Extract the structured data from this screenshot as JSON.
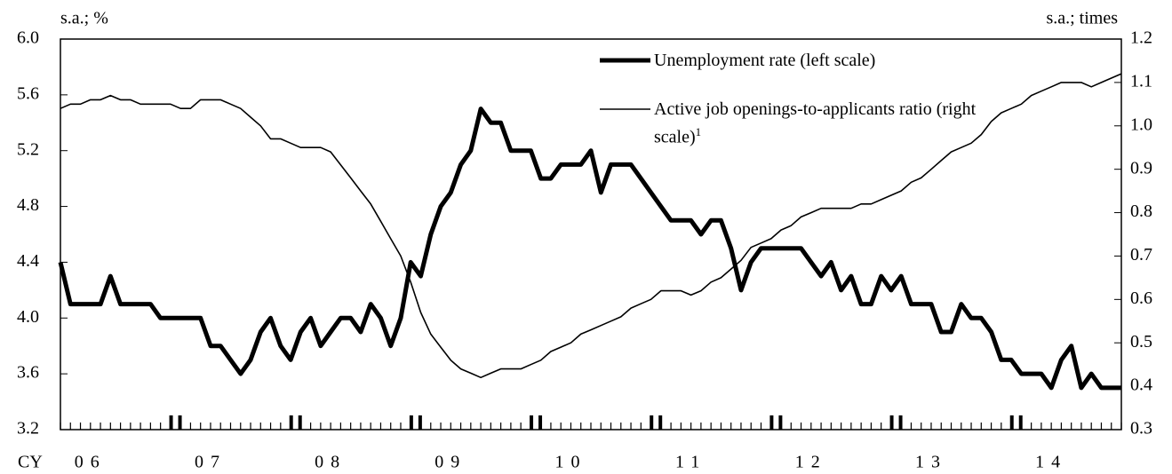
{
  "chart_data": {
    "type": "line",
    "ylabel": "s.a.; %",
    "y2label": "s.a.; times",
    "xlabel": "CY",
    "categories": [
      null,
      null,
      null,
      "06",
      null,
      null,
      null,
      null,
      null,
      null,
      null,
      null,
      null,
      null,
      null,
      "07",
      null,
      null,
      null,
      null,
      null,
      null,
      null,
      null,
      null,
      null,
      null,
      "08",
      null,
      null,
      null,
      null,
      null,
      null,
      null,
      null,
      null,
      null,
      null,
      "09",
      null,
      null,
      null,
      null,
      null,
      null,
      null,
      null,
      null,
      null,
      null,
      "10",
      null,
      null,
      null,
      null,
      null,
      null,
      null,
      null,
      null,
      null,
      null,
      "11",
      null,
      null,
      null,
      null,
      null,
      null,
      null,
      null,
      null,
      null,
      null,
      "12",
      null,
      null,
      null,
      null,
      null,
      null,
      null,
      null,
      null,
      null,
      null,
      "13",
      null,
      null,
      null,
      null,
      null,
      null,
      null,
      null,
      null,
      null,
      null,
      "14",
      null,
      null,
      null,
      null,
      null,
      null,
      null
    ],
    "series": [
      {
        "name": "Unemployment rate (left scale)",
        "color": "#000000",
        "axis": "y",
        "width": 5,
        "values": [
          4.4,
          4.1,
          4.1,
          4.1,
          4.1,
          4.3,
          4.1,
          4.1,
          4.1,
          4.1,
          4.0,
          4.0,
          4.0,
          4.0,
          4.0,
          3.8,
          3.8,
          3.7,
          3.6,
          3.7,
          3.9,
          4.0,
          3.8,
          3.7,
          3.9,
          4.0,
          3.8,
          3.9,
          4.0,
          4.0,
          3.9,
          4.1,
          4.0,
          3.8,
          4.0,
          4.4,
          4.3,
          4.6,
          4.8,
          4.9,
          5.1,
          5.2,
          5.5,
          5.4,
          5.4,
          5.2,
          5.2,
          5.2,
          5.0,
          5.0,
          5.1,
          5.1,
          5.1,
          5.2,
          4.9,
          5.1,
          5.1,
          5.1,
          5.0,
          4.9,
          4.8,
          4.7,
          4.7,
          4.7,
          4.6,
          4.7,
          4.7,
          4.5,
          4.2,
          4.4,
          4.5,
          4.5,
          4.5,
          4.5,
          4.5,
          4.4,
          4.3,
          4.4,
          4.2,
          4.3,
          4.1,
          4.1,
          4.3,
          4.2,
          4.3,
          4.1,
          4.1,
          4.1,
          3.9,
          3.9,
          4.1,
          4.0,
          4.0,
          3.9,
          3.7,
          3.7,
          3.6,
          3.6,
          3.6,
          3.5,
          3.7,
          3.8,
          3.5,
          3.6,
          3.5,
          3.5,
          3.5
        ]
      },
      {
        "name": "Active job openings-to-applicants ratio (right scale)",
        "footnote_mark": "1",
        "color": "#000000",
        "axis": "y2",
        "width": 1.6,
        "values": [
          1.04,
          1.05,
          1.05,
          1.06,
          1.06,
          1.07,
          1.06,
          1.06,
          1.05,
          1.05,
          1.05,
          1.05,
          1.04,
          1.04,
          1.06,
          1.06,
          1.06,
          1.05,
          1.04,
          1.02,
          1.0,
          0.97,
          0.97,
          0.96,
          0.95,
          0.95,
          0.95,
          0.94,
          0.91,
          0.88,
          0.85,
          0.82,
          0.78,
          0.74,
          0.7,
          0.64,
          0.57,
          0.52,
          0.49,
          0.46,
          0.44,
          0.43,
          0.42,
          0.43,
          0.44,
          0.44,
          0.44,
          0.45,
          0.46,
          0.48,
          0.49,
          0.5,
          0.52,
          0.53,
          0.54,
          0.55,
          0.56,
          0.58,
          0.59,
          0.6,
          0.62,
          0.62,
          0.62,
          0.61,
          0.62,
          0.64,
          0.65,
          0.67,
          0.69,
          0.72,
          0.73,
          0.74,
          0.76,
          0.77,
          0.79,
          0.8,
          0.81,
          0.81,
          0.81,
          0.81,
          0.82,
          0.82,
          0.83,
          0.84,
          0.85,
          0.87,
          0.88,
          0.9,
          0.92,
          0.94,
          0.95,
          0.96,
          0.98,
          1.01,
          1.03,
          1.04,
          1.05,
          1.07,
          1.08,
          1.09,
          1.1,
          1.1,
          1.1,
          1.09,
          1.1,
          1.11,
          1.12
        ]
      }
    ],
    "ylim": [
      3.2,
      6.0
    ],
    "yticks": [
      {
        "value": 3.2,
        "label": "3.2"
      },
      3.6,
      {
        "value": 4.0,
        "label": "4.0"
      },
      4.4,
      4.8,
      5.2,
      5.6,
      {
        "value": 6.0,
        "label": "6.0"
      }
    ],
    "y2lim": [
      0.3,
      1.2
    ],
    "y2ticks": [
      0.3,
      0.4,
      0.5,
      0.6,
      0.7,
      0.8,
      0.9,
      {
        "value": 1.0,
        "label": "1.0"
      },
      1.1,
      1.2
    ],
    "grid": false
  }
}
